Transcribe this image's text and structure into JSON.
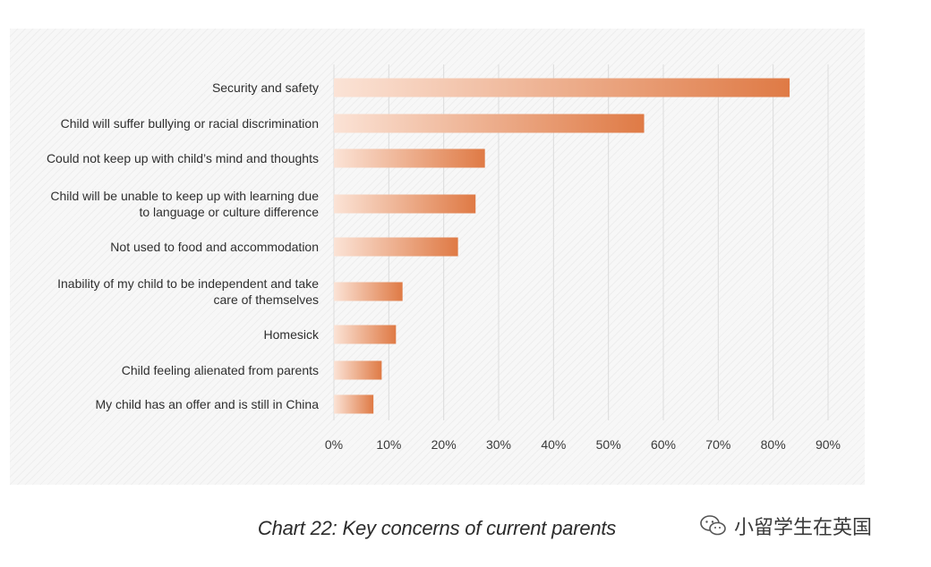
{
  "colors": {
    "bar_start": "#fbe3d6",
    "bar_end": "#df7a45",
    "grid": "#dcdcdc",
    "text": "#2f2f2f"
  },
  "chart_data": {
    "type": "bar",
    "orientation": "horizontal",
    "title": "Chart 22: Key concerns of current parents",
    "xlabel": "",
    "ylabel": "",
    "xlim": [
      0,
      90
    ],
    "grid": true,
    "categories": [
      [
        "Security and safety"
      ],
      [
        "Child will suffer bullying or racial discrimination"
      ],
      [
        "Could not keep up with child’s mind and thoughts"
      ],
      [
        "Child will be unable to keep up with learning due",
        "to language or culture difference"
      ],
      [
        "Not used to food and accommodation"
      ],
      [
        "Inability of my child to be independent and take",
        "care of themselves"
      ],
      [
        "Homesick"
      ],
      [
        "Child feeling alienated from parents"
      ],
      [
        "My child has an offer and is still in China"
      ]
    ],
    "values": [
      83,
      56.5,
      27.5,
      25.8,
      22.6,
      12.5,
      11.3,
      8.7,
      7.2
    ],
    "tick_values": [
      0,
      10,
      20,
      30,
      40,
      50,
      60,
      70,
      80,
      90
    ],
    "tick_labels": [
      "0%",
      "10%",
      "20%",
      "30%",
      "40%",
      "50%",
      "60%",
      "70%",
      "80%",
      "90%"
    ]
  },
  "caption": "Chart 22: Key concerns of current parents",
  "watermark": {
    "icon": "wechat-icon",
    "text": "小留学生在英国"
  }
}
